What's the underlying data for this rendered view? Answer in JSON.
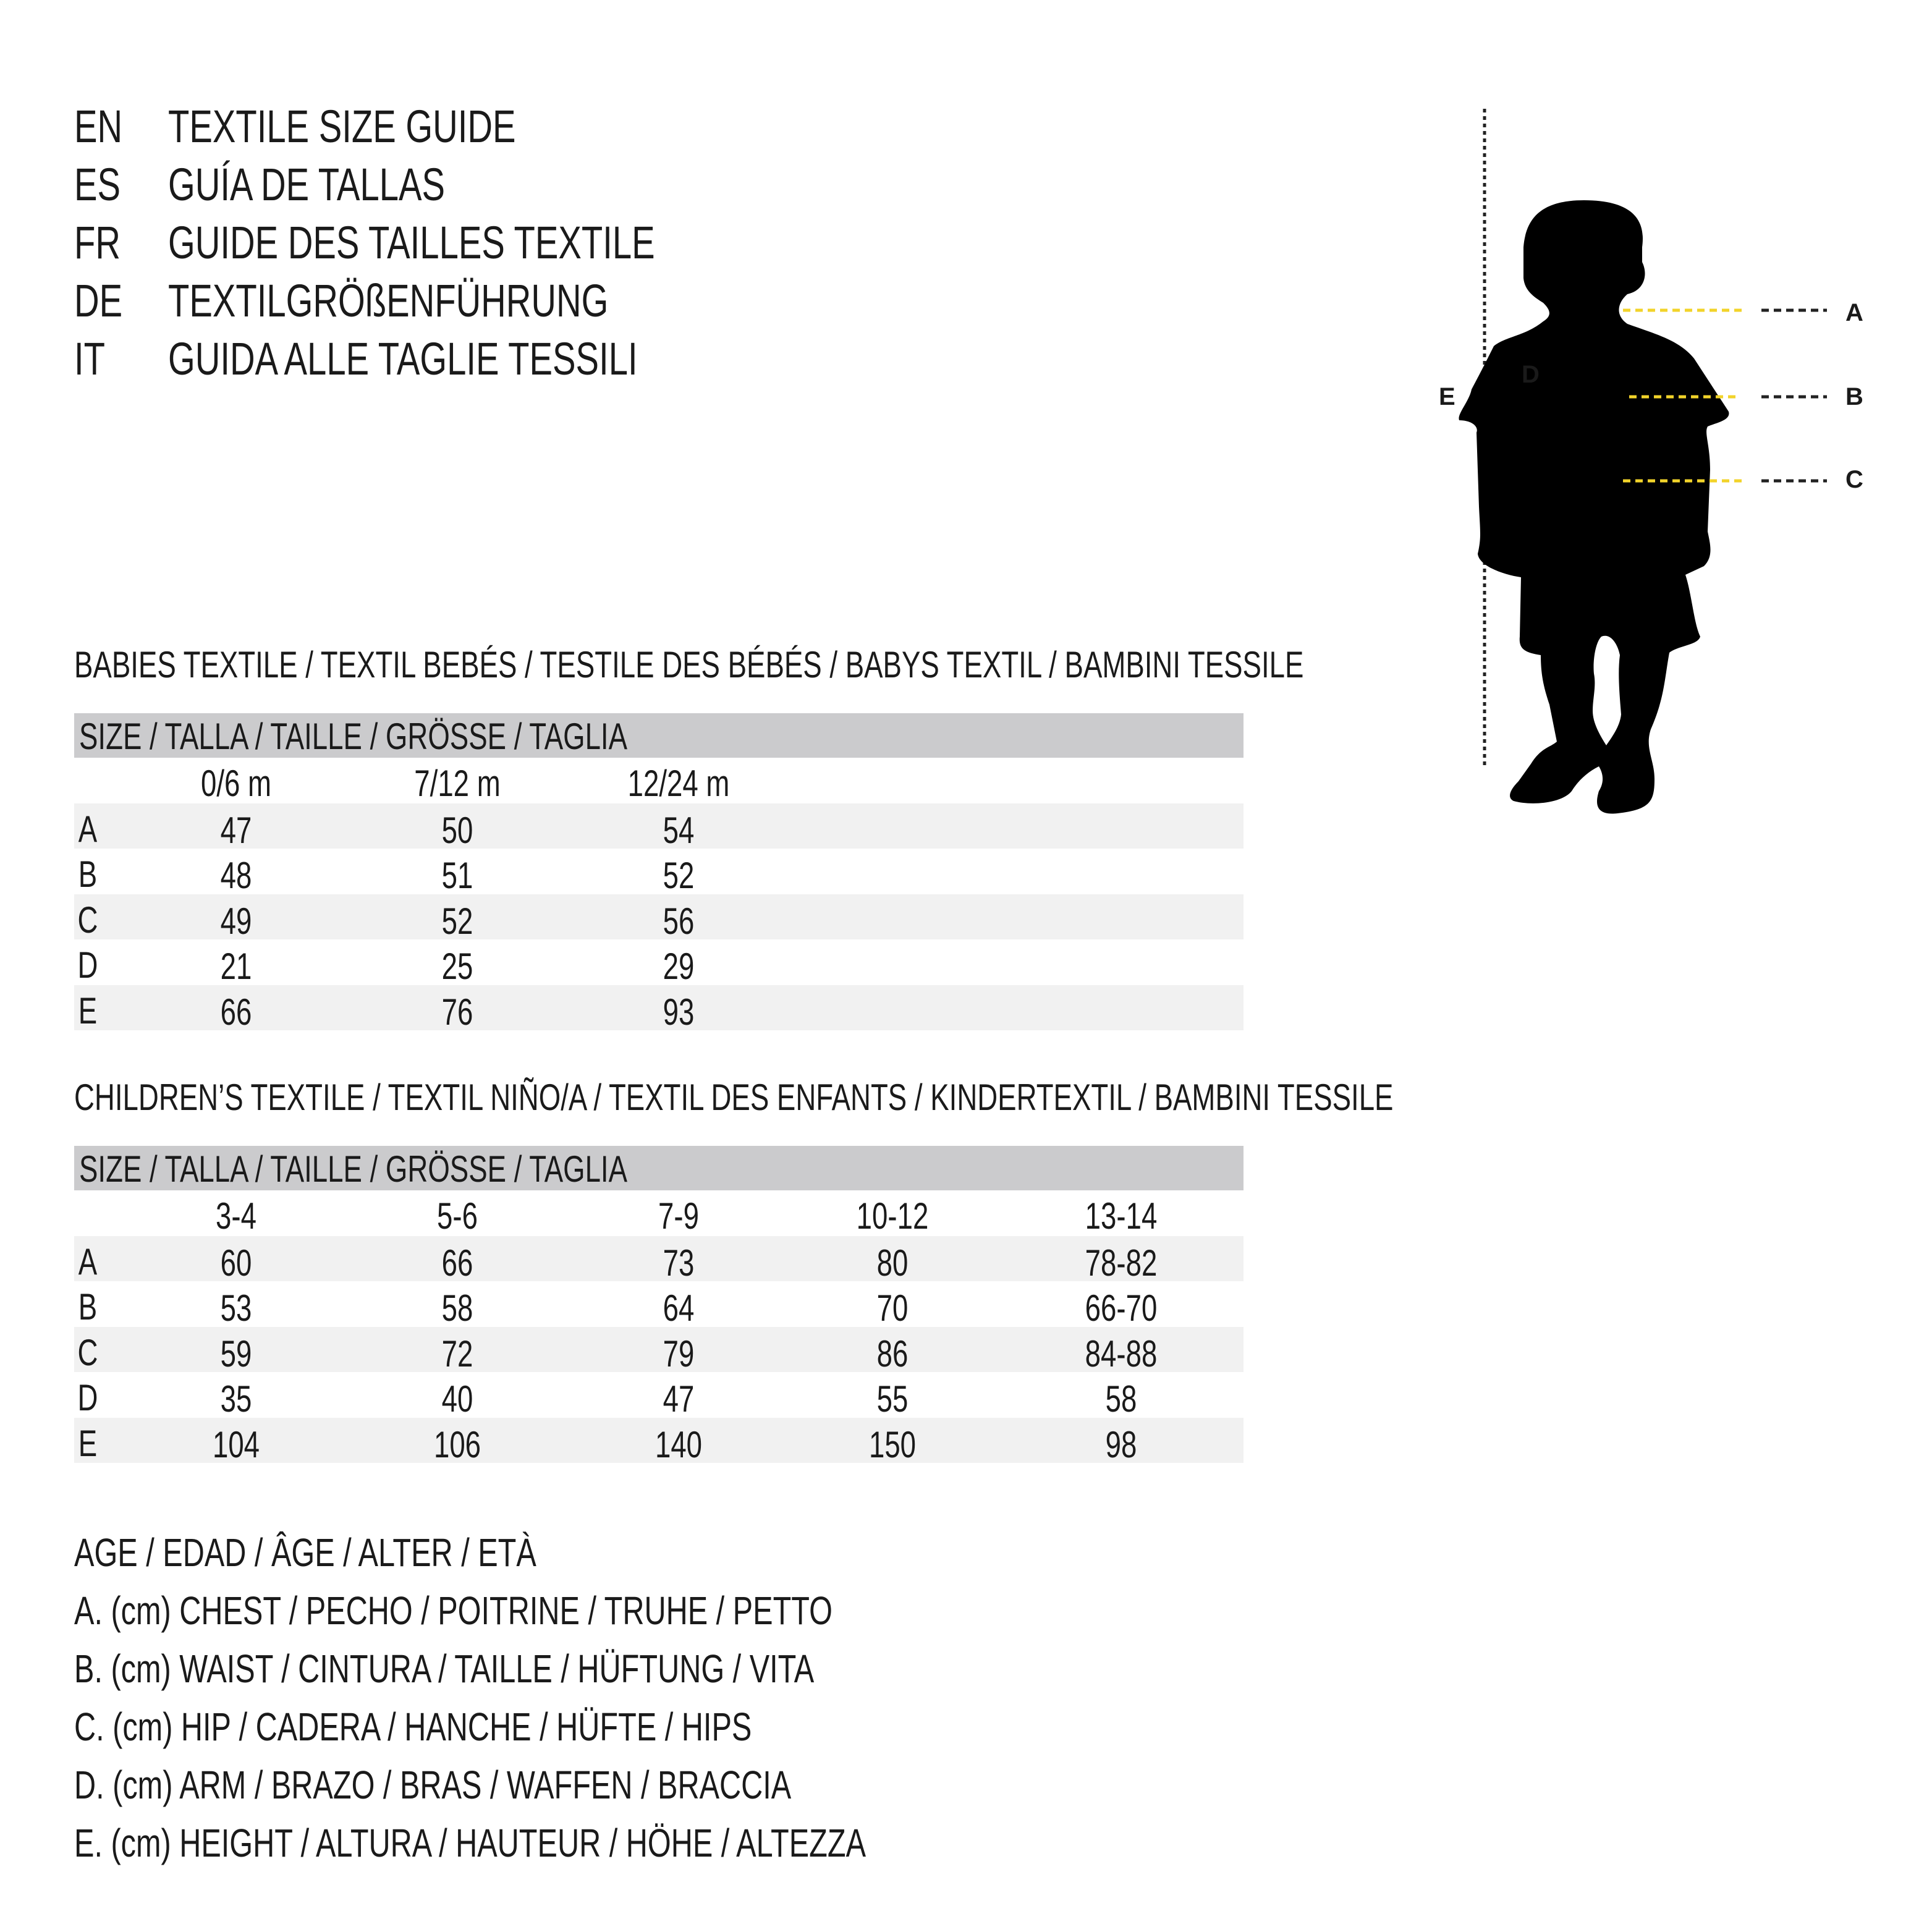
{
  "guide_titles": [
    {
      "code": "EN",
      "title": "TEXTILE SIZE GUIDE"
    },
    {
      "code": "ES",
      "title": "GUÍA DE TALLAS"
    },
    {
      "code": "FR",
      "title": "GUIDE DES TAILLES TEXTILE"
    },
    {
      "code": "DE",
      "title": "TEXTILGRÖßENFÜHRUNG"
    },
    {
      "code": "IT",
      "title": "GUIDA ALLE TAGLIE TESSILI"
    }
  ],
  "babies": {
    "title": "BABIES TEXTILE / TEXTIL BEBÉS / TESTILE DES BÉBÉS / BABYS TEXTIL / BAMBINI TESSILE",
    "header": "SIZE / TALLA / TAILLE / GRÖSSE / TAGLIA",
    "columns": [
      "0/6 m",
      "7/12 m",
      "12/24 m"
    ],
    "rows": [
      {
        "label": "A",
        "values": [
          "47",
          "50",
          "54"
        ]
      },
      {
        "label": "B",
        "values": [
          "48",
          "51",
          "52"
        ]
      },
      {
        "label": "C",
        "values": [
          "49",
          "52",
          "56"
        ]
      },
      {
        "label": "D",
        "values": [
          "21",
          "25",
          "29"
        ]
      },
      {
        "label": "E",
        "values": [
          "66",
          "76",
          "93"
        ]
      }
    ]
  },
  "children": {
    "title": "CHILDREN’S TEXTILE / TEXTIL NIÑO/A / TEXTIL DES ENFANTS / KINDERTEXTIL / BAMBINI TESSILE",
    "header": "SIZE / TALLA / TAILLE / GRÖSSE / TAGLIA",
    "columns": [
      "3-4",
      "5-6",
      "7-9",
      "10-12",
      "13-14"
    ],
    "rows": [
      {
        "label": "A",
        "values": [
          "60",
          "66",
          "73",
          "80",
          "78-82"
        ]
      },
      {
        "label": "B",
        "values": [
          "53",
          "58",
          "64",
          "70",
          "66-70"
        ]
      },
      {
        "label": "C",
        "values": [
          "59",
          "72",
          "79",
          "86",
          "84-88"
        ]
      },
      {
        "label": "D",
        "values": [
          "35",
          "40",
          "47",
          "55",
          "58"
        ]
      },
      {
        "label": "E",
        "values": [
          "104",
          "106",
          "140",
          "150",
          "98"
        ]
      }
    ]
  },
  "legend": [
    "AGE / EDAD / ÂGE / ALTER / ETÀ",
    "A. (cm) CHEST / PECHO / POITRINE / TRUHE / PETTO",
    "B. (cm) WAIST / CINTURA / TAILLE / HÜFTUNG / VITA",
    "C. (cm) HIP / CADERA / HANCHE / HÜFTE / HIPS",
    "D. (cm) ARM / BRAZO / BRAS / WAFFEN / BRACCIA",
    "E. (cm) HEIGHT / ALTURA / HAUTEUR / HÖHE / ALTEZZA"
  ],
  "figure": {
    "labels": {
      "a": "A",
      "b": "B",
      "c": "C",
      "d": "D",
      "e": "E"
    },
    "measure_line_color": "#f2d32a",
    "silhouette_color": "#000000"
  }
}
